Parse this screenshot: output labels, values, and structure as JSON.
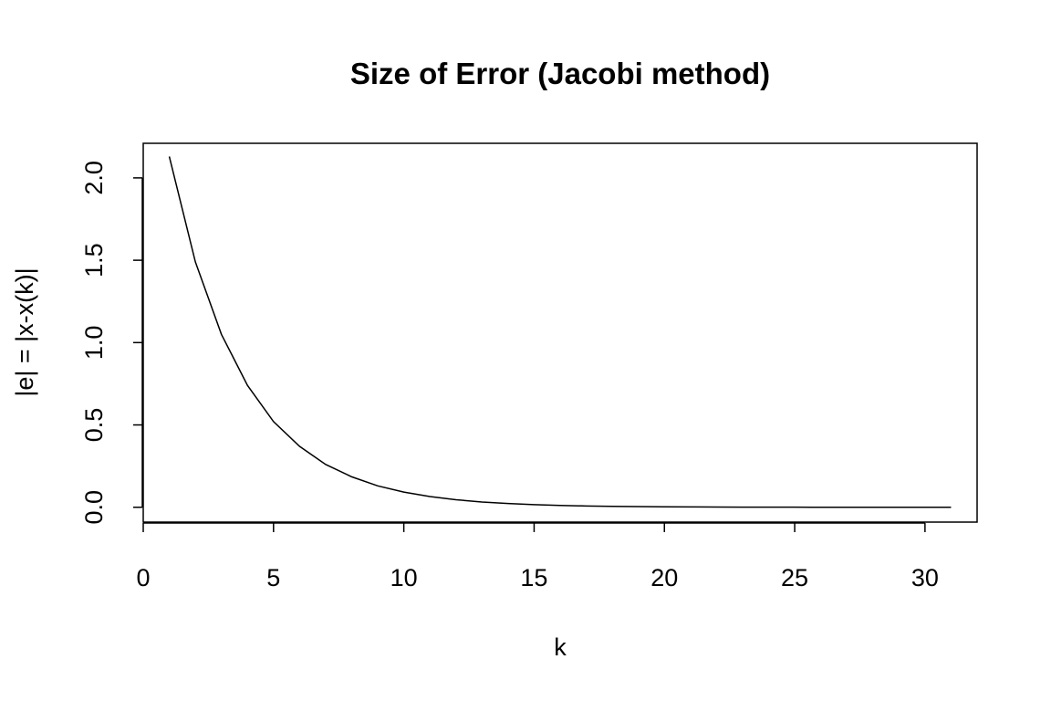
{
  "chart_data": {
    "type": "line",
    "title": "Size of Error (Jacobi method)",
    "xlabel": "k",
    "ylabel": "|e| = |x-x(k)|",
    "xlim": [
      0,
      32
    ],
    "ylim": [
      -0.09,
      2.21
    ],
    "xticks": [
      0,
      5,
      10,
      15,
      20,
      25,
      30
    ],
    "xtick_labels": [
      "0",
      "5",
      "10",
      "15",
      "20",
      "25",
      "30"
    ],
    "yticks": [
      0.0,
      0.5,
      1.0,
      1.5,
      2.0
    ],
    "ytick_labels": [
      "0.0",
      "0.5",
      "1.0",
      "1.5",
      "2.0"
    ],
    "grid": false,
    "series": [
      {
        "color": "#000000",
        "x": [
          1,
          2,
          3,
          4,
          5,
          6,
          7,
          8,
          9,
          10,
          11,
          12,
          13,
          14,
          15,
          16,
          17,
          18,
          19,
          20,
          21,
          22,
          23,
          24,
          25,
          26,
          27,
          28,
          29,
          30,
          31
        ],
        "y": [
          2.13,
          1.49,
          1.05,
          0.74,
          0.52,
          0.37,
          0.26,
          0.185,
          0.13,
          0.092,
          0.065,
          0.046,
          0.032,
          0.023,
          0.016,
          0.011,
          0.008,
          0.0056,
          0.004,
          0.0028,
          0.002,
          0.0014,
          0.001,
          0.0007,
          0.0005,
          0.00035,
          0.00025,
          0.00018,
          0.00012,
          9e-05,
          6e-05
        ]
      }
    ]
  }
}
